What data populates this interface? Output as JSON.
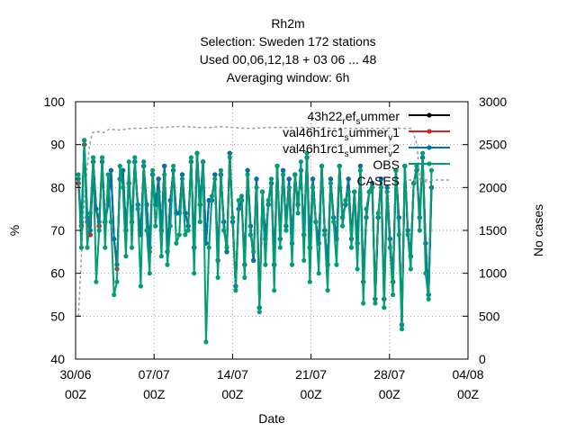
{
  "chart_data": {
    "type": "line",
    "title_lines": [
      "Rh2m",
      "Selection: Sweden    172 stations",
      "Used  00,06,12,18  + 03 06 ... 48",
      "Averaging window:  6h"
    ],
    "xlabel": "Date",
    "ylabel": "%",
    "y2label": "No cases",
    "xlim": [
      0,
      35
    ],
    "ylim": [
      40,
      100
    ],
    "y2lim": [
      0,
      3000
    ],
    "grid": true,
    "legend_position": "top-right",
    "x_ticks": [
      {
        "x": 0,
        "line1": "30/06",
        "line2": "00Z"
      },
      {
        "x": 7,
        "line1": "07/07",
        "line2": "00Z"
      },
      {
        "x": 14,
        "line1": "14/07",
        "line2": "00Z"
      },
      {
        "x": 21,
        "line1": "21/07",
        "line2": "00Z"
      },
      {
        "x": 28,
        "line1": "28/07",
        "line2": "00Z"
      },
      {
        "x": 35,
        "line1": "04/08",
        "line2": "00Z"
      }
    ],
    "y_ticks": [
      40,
      50,
      60,
      70,
      80,
      90,
      100
    ],
    "y2_ticks": [
      0,
      500,
      1000,
      1500,
      2000,
      2500,
      3000
    ],
    "legend": {
      "s1": {
        "prefix": "43h22",
        "sub1": "r",
        "mid": "ef",
        "sub2": "s",
        "rest": "ummer"
      },
      "s2": {
        "prefix": "val46h1rc1",
        "sub1": "s",
        "mid": "ummer",
        "sub2": "v",
        "rest": "1"
      },
      "s3": {
        "prefix": "val46h1rc1",
        "sub1": "s",
        "mid": "ummer",
        "sub2": "v",
        "rest": "2"
      },
      "obs": "OBS",
      "cases": "CASES"
    },
    "series": [
      {
        "key": "s1",
        "color": "#000000",
        "values": [
          81,
          71,
          90,
          73,
          69,
          86,
          75,
          71,
          86,
          72,
          76,
          84,
          68,
          62,
          82,
          84,
          70,
          81,
          72,
          86,
          76,
          69,
          85,
          76,
          66,
          83,
          76,
          82,
          70,
          85,
          65,
          77,
          84,
          74,
          74,
          83,
          74,
          71,
          86,
          66,
          88,
          76,
          86,
          67,
          77,
          77,
          83,
          63,
          83,
          72,
          65,
          88,
          72,
          57,
          75,
          77,
          62,
          84,
          71,
          63,
          82,
          52,
          79,
          68,
          76,
          81,
          62,
          85,
          68,
          84,
          71,
          82,
          67,
          83,
          76,
          84,
          69,
          87,
          66,
          82,
          72,
          67,
          85,
          70,
          62,
          82,
          73,
          68,
          85,
          73,
          76,
          82,
          68,
          79,
          67,
          85,
          58,
          73,
          79,
          81,
          54,
          73,
          82,
          54,
          80,
          68,
          58,
          84,
          73,
          48,
          85,
          70,
          64,
          81,
          84,
          73,
          87,
          67,
          55,
          80
        ]
      },
      {
        "key": "s2",
        "color": "#e41a1c",
        "values": [
          81,
          71,
          90,
          72,
          69,
          86,
          75,
          71,
          86,
          72,
          76,
          84,
          68,
          61,
          82,
          84,
          70,
          81,
          72,
          86,
          76,
          69,
          85,
          76,
          65,
          83,
          76,
          82,
          70,
          85,
          65,
          77,
          84,
          74,
          74,
          83,
          74,
          71,
          86,
          66,
          88,
          76,
          86,
          67,
          77,
          77,
          83,
          63,
          83,
          72,
          65,
          88,
          72,
          57,
          75,
          77,
          62,
          84,
          71,
          63,
          82,
          52,
          79,
          68,
          76,
          81,
          62,
          85,
          68,
          84,
          71,
          82,
          67,
          83,
          76,
          84,
          69,
          87,
          66,
          82,
          72,
          67,
          85,
          70,
          62,
          82,
          73,
          68,
          85,
          73,
          76,
          82,
          68,
          79,
          67,
          85,
          58,
          73,
          79,
          81,
          54,
          73,
          82,
          54,
          80,
          68,
          58,
          84,
          73,
          48,
          85,
          70,
          64,
          81,
          84,
          73,
          87,
          67,
          55,
          80
        ]
      },
      {
        "key": "s3",
        "color": "#0072b2",
        "values": [
          82,
          72,
          91,
          73,
          70,
          86,
          75,
          72,
          86,
          72,
          76,
          84,
          68,
          62,
          82,
          84,
          70,
          81,
          72,
          86,
          76,
          69,
          85,
          76,
          66,
          83,
          76,
          82,
          70,
          85,
          65,
          77,
          84,
          74,
          74,
          83,
          74,
          71,
          86,
          66,
          88,
          76,
          86,
          67,
          77,
          77,
          83,
          63,
          83,
          72,
          65,
          88,
          72,
          57,
          75,
          77,
          62,
          84,
          71,
          63,
          82,
          52,
          79,
          68,
          76,
          81,
          62,
          85,
          68,
          84,
          71,
          82,
          67,
          83,
          76,
          84,
          69,
          87,
          66,
          82,
          72,
          67,
          85,
          70,
          62,
          82,
          73,
          68,
          85,
          73,
          76,
          82,
          68,
          79,
          67,
          85,
          58,
          73,
          79,
          81,
          54,
          73,
          82,
          54,
          80,
          68,
          58,
          84,
          73,
          48,
          85,
          70,
          64,
          81,
          84,
          73,
          87,
          67,
          55,
          80
        ]
      },
      {
        "key": "obs",
        "color": "#009e73",
        "values": [
          83,
          66,
          91,
          66,
          74,
          87,
          58,
          70,
          87,
          66,
          83,
          72,
          55,
          58,
          85,
          80,
          64,
          86,
          66,
          87,
          75,
          57,
          86,
          70,
          60,
          84,
          71,
          79,
          64,
          83,
          62,
          71,
          85,
          67,
          69,
          82,
          69,
          70,
          87,
          60,
          88,
          72,
          86,
          44,
          66,
          78,
          82,
          59,
          84,
          70,
          66,
          87,
          73,
          56,
          77,
          78,
          59,
          83,
          69,
          65,
          80,
          51,
          79,
          62,
          77,
          82,
          56,
          85,
          66,
          83,
          70,
          80,
          62,
          83,
          74,
          86,
          63,
          88,
          58,
          80,
          72,
          60,
          85,
          69,
          56,
          81,
          72,
          62,
          85,
          71,
          77,
          79,
          66,
          79,
          61,
          84,
          53,
          75,
          79,
          80,
          53,
          74,
          80,
          52,
          79,
          66,
          55,
          84,
          69,
          47,
          85,
          69,
          61,
          81,
          85,
          70,
          88,
          60,
          54,
          84
        ]
      }
    ],
    "cases": {
      "color": "#999999",
      "x": [
        0.25,
        0.75,
        1.0,
        1.25,
        1.5,
        2.0,
        2.5,
        3.0,
        4.0,
        5.0,
        6.0,
        7.0,
        8.0,
        9.0,
        10.0,
        11.0,
        12.0,
        13.0,
        14.0,
        15.0,
        16.0,
        17.0,
        18.0,
        19.0,
        20.0,
        21.0,
        22.0,
        23.0,
        24.0,
        25.0,
        26.0,
        27.0,
        28.0,
        28.3,
        28.6,
        29.0,
        29.4,
        29.7,
        30.0,
        30.2,
        30.45,
        30.7,
        31.0,
        31.4,
        31.75
      ],
      "values": [
        500,
        1800,
        2200,
        2500,
        2640,
        2650,
        2640,
        2680,
        2670,
        2690,
        2690,
        2700,
        2700,
        2710,
        2710,
        2700,
        2700,
        2710,
        2700,
        2690,
        2690,
        2700,
        2700,
        2700,
        2700,
        2700,
        2700,
        2690,
        2690,
        2690,
        2690,
        2690,
        2690,
        2690,
        2690,
        2690,
        2690,
        2690,
        2690,
        2600,
        2500,
        2100,
        2080,
        2060,
        2070
      ]
    }
  }
}
